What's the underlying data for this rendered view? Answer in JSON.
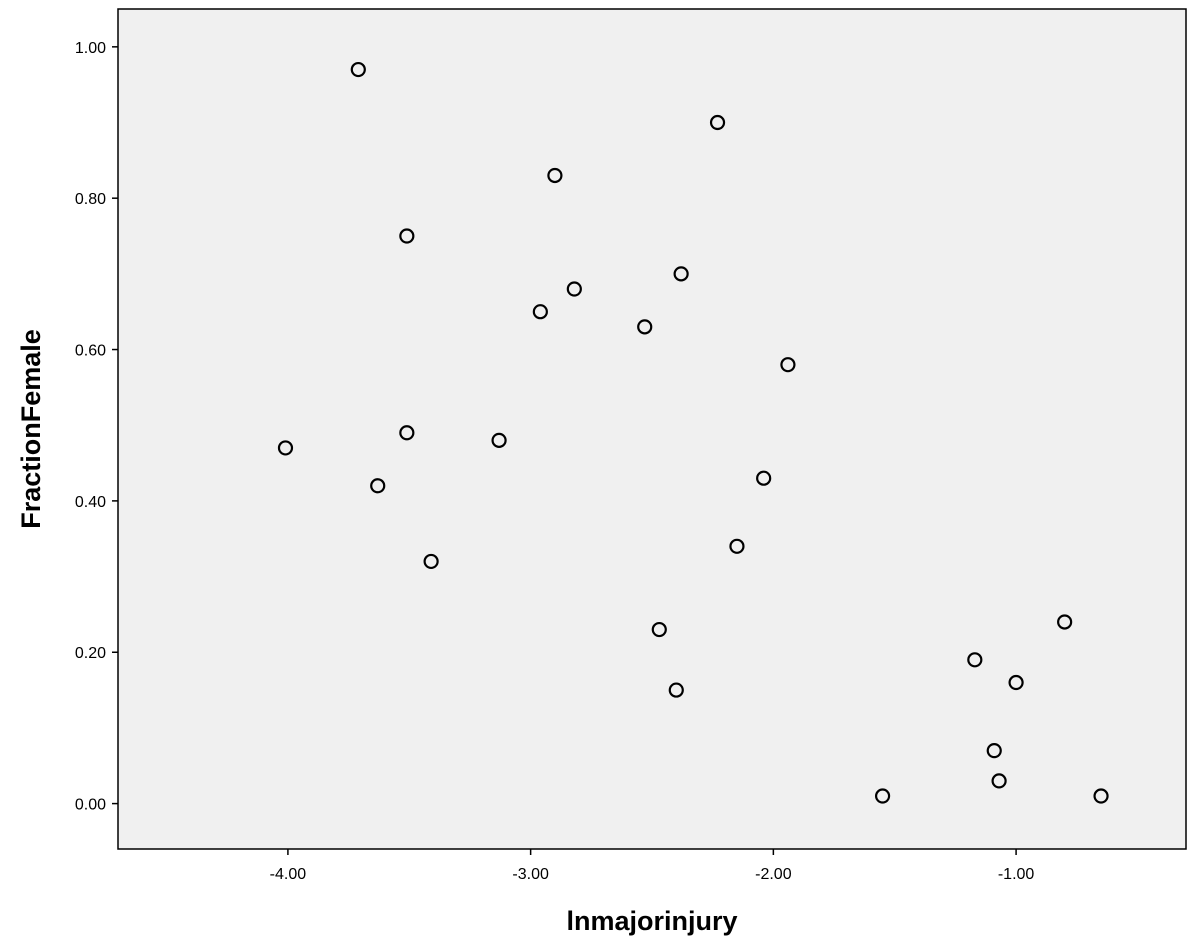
{
  "chart_data": {
    "type": "scatter",
    "title": "",
    "xlabel": "lnmajorinjury",
    "ylabel": "FractionFemale",
    "xlim": [
      -4.7,
      -0.3
    ],
    "ylim": [
      -0.06,
      1.05
    ],
    "x_ticks": [
      {
        "value": -4.0,
        "label": "-4.00"
      },
      {
        "value": -3.0,
        "label": "-3.00"
      },
      {
        "value": -2.0,
        "label": "-2.00"
      },
      {
        "value": -1.0,
        "label": "-1.00"
      }
    ],
    "y_ticks": [
      {
        "value": 0.0,
        "label": "0.00"
      },
      {
        "value": 0.2,
        "label": "0.20"
      },
      {
        "value": 0.4,
        "label": "0.40"
      },
      {
        "value": 0.6,
        "label": "0.60"
      },
      {
        "value": 0.8,
        "label": "0.80"
      },
      {
        "value": 1.0,
        "label": "1.00"
      }
    ],
    "grid": false,
    "legend": "none",
    "colors": {
      "plot_background": "#f0f0f0",
      "marker_edge": "#000000",
      "axes": "#000000"
    },
    "series": [
      {
        "marker": "open-circle",
        "points": [
          {
            "x": -3.71,
            "y": 0.97
          },
          {
            "x": -2.23,
            "y": 0.9
          },
          {
            "x": -2.9,
            "y": 0.83
          },
          {
            "x": -3.51,
            "y": 0.75
          },
          {
            "x": -2.38,
            "y": 0.7
          },
          {
            "x": -2.82,
            "y": 0.68
          },
          {
            "x": -2.96,
            "y": 0.65
          },
          {
            "x": -2.53,
            "y": 0.63
          },
          {
            "x": -1.94,
            "y": 0.58
          },
          {
            "x": -4.01,
            "y": 0.47
          },
          {
            "x": -3.51,
            "y": 0.49
          },
          {
            "x": -3.13,
            "y": 0.48
          },
          {
            "x": -3.63,
            "y": 0.42
          },
          {
            "x": -2.04,
            "y": 0.43
          },
          {
            "x": -3.41,
            "y": 0.32
          },
          {
            "x": -2.15,
            "y": 0.34
          },
          {
            "x": -2.47,
            "y": 0.23
          },
          {
            "x": -2.4,
            "y": 0.15
          },
          {
            "x": -0.8,
            "y": 0.24
          },
          {
            "x": -1.17,
            "y": 0.19
          },
          {
            "x": -1.0,
            "y": 0.16
          },
          {
            "x": -1.09,
            "y": 0.07
          },
          {
            "x": -1.07,
            "y": 0.03
          },
          {
            "x": -1.55,
            "y": 0.01
          },
          {
            "x": -0.65,
            "y": 0.01
          }
        ]
      }
    ]
  }
}
